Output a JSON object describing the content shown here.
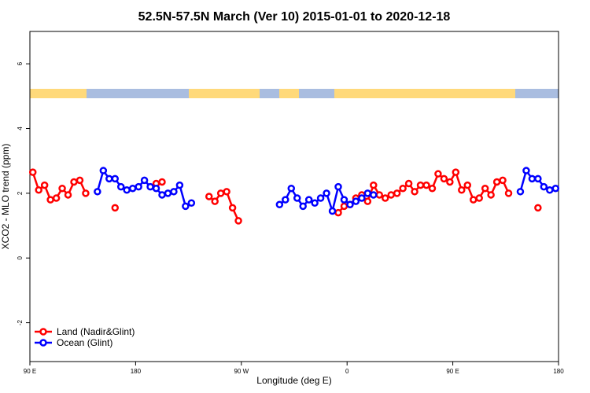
{
  "chart_data": {
    "type": "line",
    "title": "52.5N-57.5N March (Ver 10)   2015-01-01 to 2020-12-18",
    "xlabel": "Longitude (deg E)",
    "ylabel": "XCO2 - MLO trend (ppm)",
    "xlim": [
      90,
      540
    ],
    "ylim": [
      -3.2,
      7
    ],
    "xticks": [
      {
        "value": 90,
        "label": "90 E"
      },
      180,
      {
        "value": 270,
        "label": "90 W"
      },
      {
        "value": 360,
        "label": "0"
      },
      {
        "value": 450,
        "label": "90 E"
      },
      {
        "value": 540,
        "label": "180"
      }
    ],
    "yticks": [
      -2,
      0,
      2,
      4,
      6
    ],
    "legend": "bottomleft",
    "x": [
      92.5,
      97.5,
      102.5,
      107.5,
      112.5,
      117.5,
      122.5,
      127.5,
      132.5,
      137.5,
      142.5,
      147.5,
      152.5,
      157.5,
      162.5,
      167.5,
      172.5,
      177.5,
      182.5,
      187.5,
      192.5,
      197.5,
      202.5,
      207.5,
      212.5,
      217.5,
      222.5,
      227.5,
      232.5,
      237.5,
      242.5,
      247.5,
      252.5,
      257.5,
      262.5,
      267.5,
      272.5,
      277.5,
      282.5,
      287.5,
      292.5,
      297.5,
      302.5,
      307.5,
      312.5,
      317.5,
      322.5,
      327.5,
      332.5,
      337.5,
      342.5,
      347.5,
      352.5,
      357.5,
      362.5,
      367.5,
      372.5,
      377.5,
      382.5,
      387.5,
      392.5,
      397.5,
      402.5,
      407.5,
      412.5,
      417.5,
      422.5,
      427.5,
      432.5,
      437.5,
      442.5,
      447.5,
      452.5,
      457.5,
      462.5,
      467.5,
      472.5,
      477.5,
      482.5,
      487.5,
      492.5,
      497.5,
      502.5,
      507.5,
      512.5,
      517.5,
      522.5,
      527.5,
      532.5,
      537.5
    ],
    "series": [
      {
        "name": "Land (Nadir&Glint)",
        "color": "#ff0000",
        "values": [
          2.65,
          2.1,
          2.25,
          1.8,
          1.85,
          2.15,
          1.95,
          2.35,
          2.4,
          2.0,
          null,
          null,
          null,
          null,
          1.55,
          null,
          null,
          null,
          null,
          null,
          null,
          2.3,
          2.35,
          null,
          null,
          null,
          null,
          null,
          null,
          null,
          1.9,
          1.75,
          2.0,
          2.05,
          1.55,
          1.15,
          null,
          null,
          null,
          null,
          null,
          null,
          null,
          null,
          null,
          null,
          null,
          null,
          null,
          null,
          null,
          null,
          1.4,
          1.6,
          1.65,
          1.85,
          1.95,
          1.75,
          2.25,
          1.95,
          1.85,
          1.95,
          2.0,
          2.15,
          2.3,
          2.05,
          2.25,
          2.25,
          2.15,
          2.6,
          2.45,
          2.35,
          2.65,
          2.1,
          2.25,
          1.8,
          1.85,
          2.15,
          1.95,
          2.35,
          2.4,
          2.0,
          null,
          null,
          null,
          null,
          1.55,
          null,
          null,
          null
        ]
      },
      {
        "name": "Ocean (Glint)",
        "color": "#0000ff",
        "values": [
          null,
          null,
          null,
          null,
          null,
          null,
          null,
          null,
          null,
          null,
          null,
          2.05,
          2.7,
          2.45,
          2.45,
          2.2,
          2.1,
          2.15,
          2.2,
          2.4,
          2.2,
          2.15,
          1.95,
          2.0,
          2.05,
          2.25,
          1.6,
          1.7,
          null,
          null,
          null,
          null,
          null,
          null,
          null,
          null,
          null,
          null,
          null,
          null,
          null,
          null,
          1.65,
          1.8,
          2.15,
          1.85,
          1.6,
          1.8,
          1.7,
          1.85,
          2.0,
          1.45,
          2.2,
          1.8,
          1.65,
          1.75,
          1.85,
          2.0,
          1.95,
          null,
          null,
          null,
          null,
          null,
          null,
          null,
          null,
          null,
          null,
          null,
          null,
          null,
          null,
          null,
          null,
          null,
          null,
          null,
          null,
          null,
          null,
          null,
          null,
          2.05,
          2.7,
          2.45,
          2.45,
          2.2,
          2.1,
          2.15
        ]
      }
    ]
  }
}
